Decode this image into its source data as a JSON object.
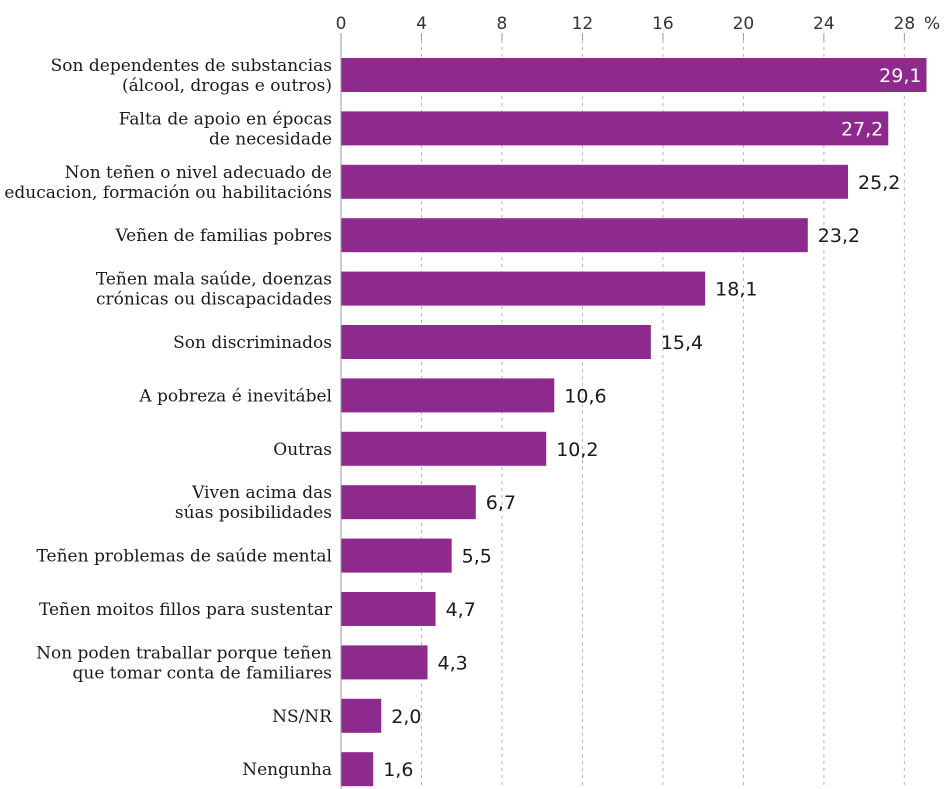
{
  "chart_data": {
    "type": "bar",
    "orientation": "horizontal",
    "unit": "%",
    "xlim": [
      0,
      28
    ],
    "ticks": [
      0,
      4,
      8,
      12,
      16,
      20,
      24,
      28
    ],
    "tick_labels": [
      "0",
      "4",
      "8",
      "12",
      "16",
      "20",
      "24",
      "28"
    ],
    "grid": true,
    "bar_color": "#8e2a8e",
    "categories": [
      [
        "Son dependentes de substancias",
        "(álcool, drogas e outros)"
      ],
      [
        "Falta de apoio en épocas",
        "de necesidade"
      ],
      [
        "Non teñen o nivel adecuado de",
        "educacion, formación ou habilitacións"
      ],
      [
        "Veñen de familias pobres"
      ],
      [
        "Teñen mala saúde, doenzas",
        "crónicas ou discapacidades"
      ],
      [
        "Son discriminados"
      ],
      [
        "A pobreza é inevitábel"
      ],
      [
        "Outras"
      ],
      [
        "Viven acima das",
        "súas posibilidades"
      ],
      [
        "Teñen problemas de saúde mental"
      ],
      [
        "Teñen moitos fillos para sustentar"
      ],
      [
        "Non poden traballar porque teñen",
        "que tomar conta de familiares"
      ],
      [
        "NS/NR"
      ],
      [
        "Nengunha"
      ]
    ],
    "values": [
      29.1,
      27.2,
      25.2,
      23.2,
      18.1,
      15.4,
      10.6,
      10.2,
      6.7,
      5.5,
      4.7,
      4.3,
      2.0,
      1.6
    ],
    "value_labels": [
      "29,1",
      "27,2",
      "25,2",
      "23,2",
      "18,1",
      "15,4",
      "10,6",
      "10,2",
      "6,7",
      "5,5",
      "4,7",
      "4,3",
      "2,0",
      "1,6"
    ]
  }
}
